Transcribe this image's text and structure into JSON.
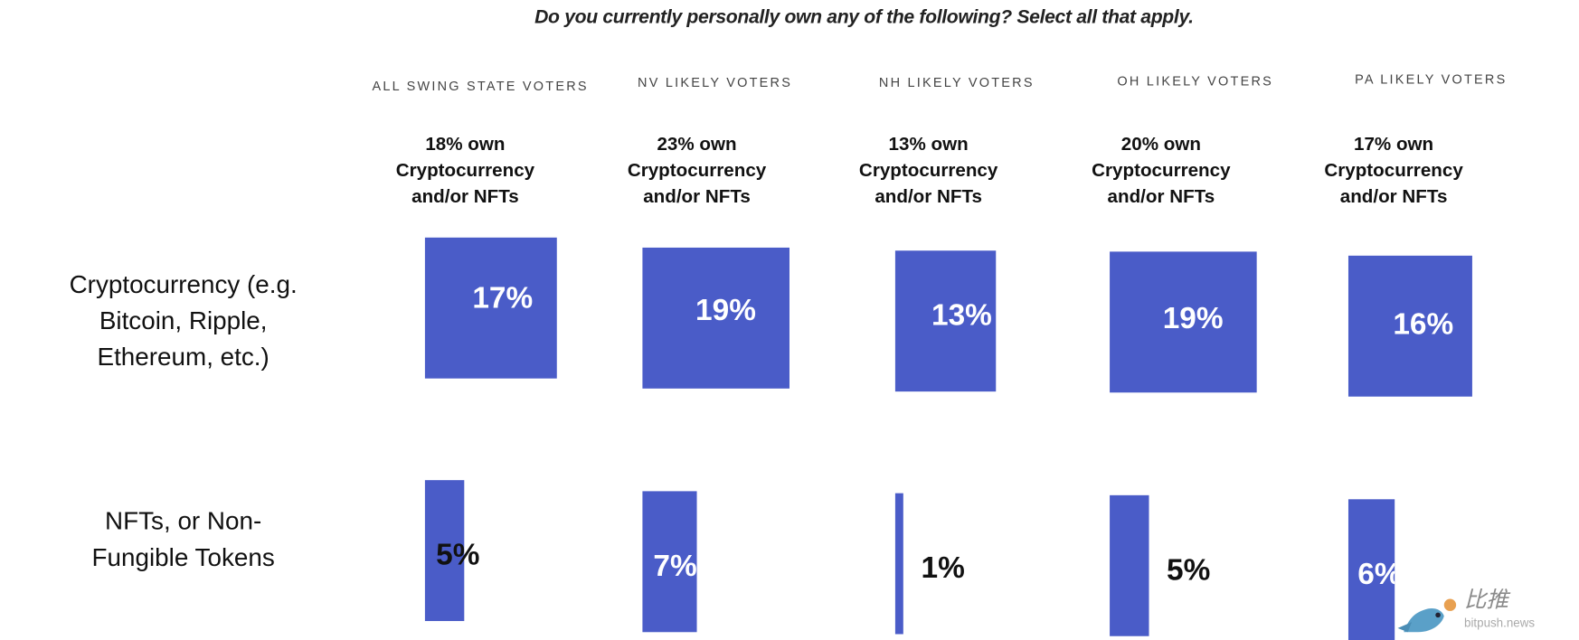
{
  "chart_data": {
    "type": "bar",
    "title": "Do you currently personally own any of the following? Select all that apply.",
    "unit": "%",
    "categories": [
      "ALL SWING STATE VOTERS",
      "NV LIKELY VOTERS",
      "NH LIKELY VOTERS",
      "OH LIKELY VOTERS",
      "PA LIKELY VOTERS"
    ],
    "summaries": [
      [
        "18% own",
        "Cryptocurrency",
        "and/or NFTs"
      ],
      [
        "23% own",
        "Cryptocurrency",
        "and/or NFTs"
      ],
      [
        "13% own",
        "Cryptocurrency",
        "and/or NFTs"
      ],
      [
        "20% own",
        "Cryptocurrency",
        "and/or NFTs"
      ],
      [
        "17% own",
        "Cryptocurrency",
        "and/or NFTs"
      ]
    ],
    "series": [
      {
        "name": "Cryptocurrency (e.g. Bitcoin, Ripple, Ethereum, etc.)",
        "label_lines": [
          "Cryptocurrency (e.g.",
          "Bitcoin, Ripple,",
          "Ethereum, etc.)"
        ],
        "values": [
          17,
          19,
          13,
          19,
          16
        ],
        "labels": [
          "17%",
          "19%",
          "13%",
          "19%",
          "16%"
        ]
      },
      {
        "name": "NFTs, or Non-Fungible Tokens",
        "label_lines": [
          "NFTs, or Non-",
          "Fungible Tokens"
        ],
        "values": [
          5,
          7,
          1,
          5,
          6
        ],
        "labels": [
          "5%",
          "7%",
          "1%",
          "5%",
          "6%"
        ]
      }
    ],
    "bar_color": "#4a5cc8",
    "legend": "none",
    "grid": false
  },
  "watermark": {
    "text": "比推",
    "subtext": "bitpush.news"
  }
}
